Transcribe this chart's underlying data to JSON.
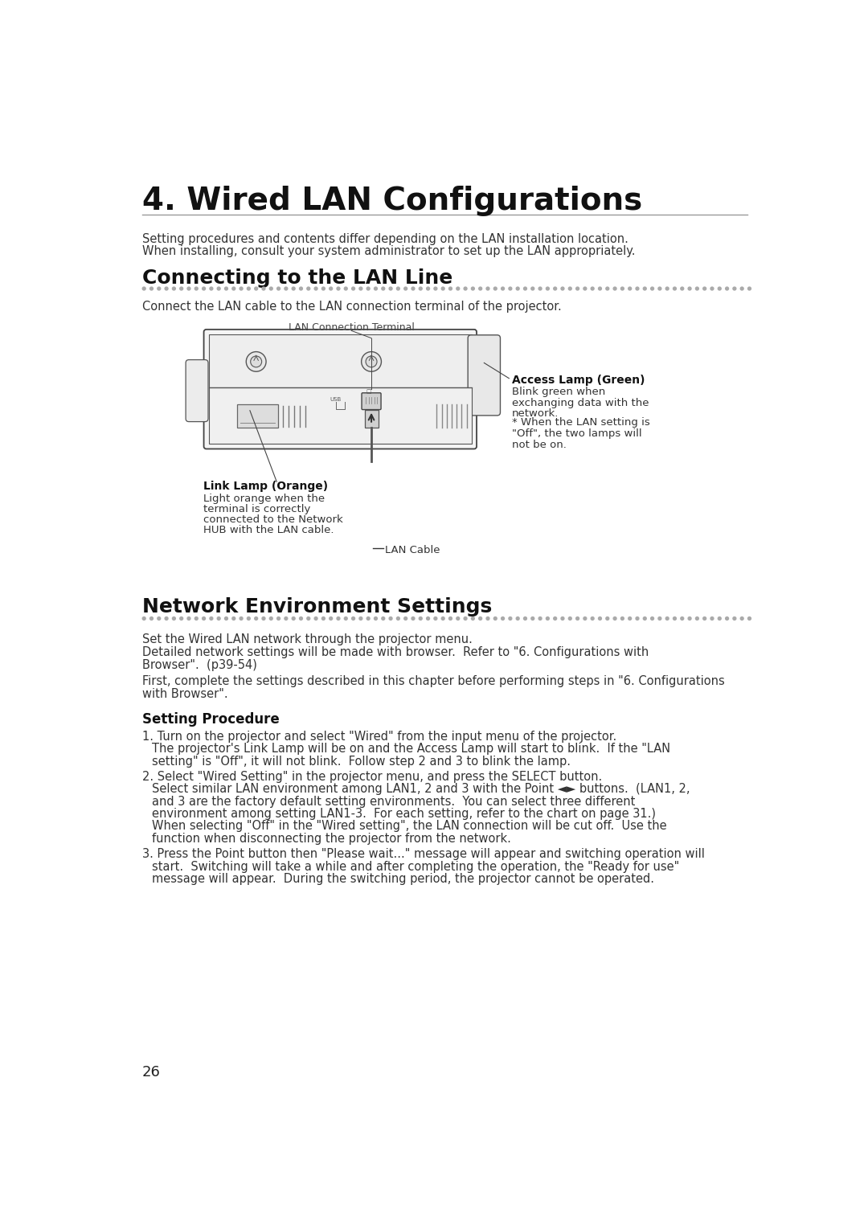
{
  "title": "4. Wired LAN Configurations",
  "bg_color": "#ffffff",
  "intro_line1": "Setting procedures and contents differ depending on the LAN installation location.",
  "intro_line2": "When installing, consult your system administrator to set up the LAN appropriately.",
  "section1_title": "Connecting to the LAN Line",
  "section1_body": "Connect the LAN cable to the LAN connection terminal of the projector.",
  "lan_conn_label": "LAN Connection Terminal",
  "access_lamp_title": "Access Lamp (Green)",
  "access_lamp_text1": "Blink green when",
  "access_lamp_text2": "exchanging data with the",
  "access_lamp_text3": "network.",
  "link_lamp_title": "Link Lamp (Orange)",
  "link_lamp_text1": "Light orange when the",
  "link_lamp_text2": "terminal is correctly",
  "link_lamp_text3": "connected to the Network",
  "link_lamp_text4": "HUB with the LAN cable.",
  "note_text1": "* When the LAN setting is",
  "note_text2": "\"Off\", the two lamps will",
  "note_text3": "not be on.",
  "lan_cable_label": "LAN Cable",
  "section2_title": "Network Environment Settings",
  "net_env_line1": "Set the Wired LAN network through the projector menu.",
  "net_env_line2": "Detailed network settings will be made with browser.  Refer to \"6. Configurations with",
  "net_env_line3": "Browser\".  (p39-54)",
  "net_env_line4": "First, complete the settings described in this chapter before performing steps in \"6. Configurations",
  "net_env_line5": "with Browser\".",
  "setting_proc_title": "Setting Procedure",
  "step1_line1": "1. Turn on the projector and select \"Wired\" from the input menu of the projector.",
  "step1_line2": "The projector's Link Lamp will be on and the Access Lamp will start to blink.  If the \"LAN",
  "step1_line3": "setting\" is \"Off\", it will not blink.  Follow step 2 and 3 to blink the lamp.",
  "step2_line1": "2. Select \"Wired Setting\" in the projector menu, and press the SELECT button.",
  "step2_line2": "Select similar LAN environment among LAN1, 2 and 3 with the Point ◄► buttons.  (LAN1, 2,",
  "step2_line3": "and 3 are the factory default setting environments.  You can select three different",
  "step2_line4": "environment among setting LAN1-3.  For each setting, refer to the chart on page 31.)",
  "step2_line5": "When selecting \"Off\" in the \"Wired setting\", the LAN connection will be cut off.  Use the",
  "step2_line6": "function when disconnecting the projector from the network.",
  "step3_line1": "3. Press the Point button then \"Please wait...\" message will appear and switching operation will",
  "step3_line2": "start.  Switching will take a while and after completing the operation, the \"Ready for use\"",
  "step3_line3": "message will appear.  During the switching period, the projector cannot be operated.",
  "page_num": "26"
}
